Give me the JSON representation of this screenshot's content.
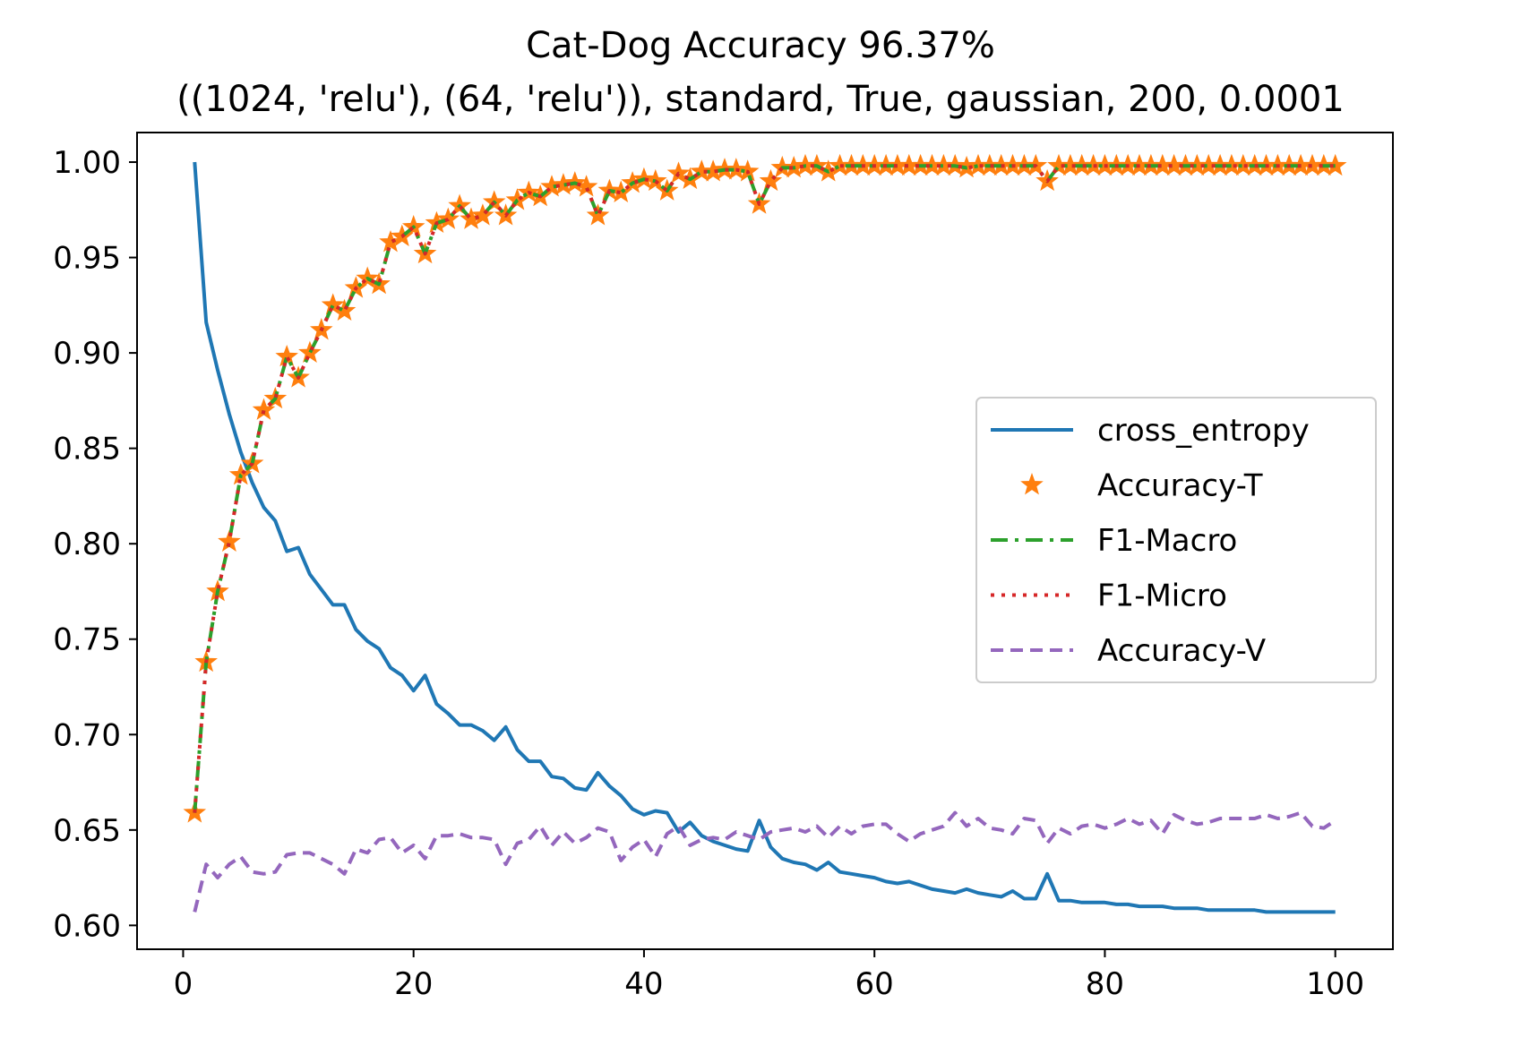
{
  "chart_data": {
    "type": "line",
    "title": "Cat-Dog Accuracy 96.37%",
    "subtitle": "((1024, 'relu'), (64, 'relu')), standard, True, gaussian, 200, 0.0001",
    "xlabel": "",
    "ylabel": "",
    "xlim": [
      -4,
      105
    ],
    "ylim": [
      0.5875,
      1.0155
    ],
    "xticks": [
      0,
      20,
      40,
      60,
      80,
      100
    ],
    "xtick_labels": [
      "0",
      "20",
      "40",
      "60",
      "80",
      "100"
    ],
    "yticks": [
      0.6,
      0.65,
      0.7,
      0.75,
      0.8,
      0.85,
      0.9,
      0.95,
      1.0
    ],
    "ytick_labels": [
      "0.60",
      "0.65",
      "0.70",
      "0.75",
      "0.80",
      "0.85",
      "0.90",
      "0.95",
      "1.00"
    ],
    "grid": false,
    "legend_position": "center-right",
    "x": [
      1,
      2,
      3,
      4,
      5,
      6,
      7,
      8,
      9,
      10,
      11,
      12,
      13,
      14,
      15,
      16,
      17,
      18,
      19,
      20,
      21,
      22,
      23,
      24,
      25,
      26,
      27,
      28,
      29,
      30,
      31,
      32,
      33,
      34,
      35,
      36,
      37,
      38,
      39,
      40,
      41,
      42,
      43,
      44,
      45,
      46,
      47,
      48,
      49,
      50,
      51,
      52,
      53,
      54,
      55,
      56,
      57,
      58,
      59,
      60,
      61,
      62,
      63,
      64,
      65,
      66,
      67,
      68,
      69,
      70,
      71,
      72,
      73,
      74,
      75,
      76,
      77,
      78,
      79,
      80,
      81,
      82,
      83,
      84,
      85,
      86,
      87,
      88,
      89,
      90,
      91,
      92,
      93,
      94,
      95,
      96,
      97,
      98,
      99,
      100
    ],
    "series": [
      {
        "name": "cross_entropy",
        "color": "#1f77b4",
        "style": "solid",
        "values": [
          1.0,
          0.916,
          0.891,
          0.868,
          0.848,
          0.832,
          0.819,
          0.812,
          0.796,
          0.798,
          0.784,
          0.776,
          0.768,
          0.768,
          0.755,
          0.749,
          0.745,
          0.735,
          0.731,
          0.723,
          0.731,
          0.716,
          0.711,
          0.705,
          0.705,
          0.702,
          0.697,
          0.704,
          0.692,
          0.686,
          0.686,
          0.678,
          0.677,
          0.672,
          0.671,
          0.68,
          0.673,
          0.668,
          0.661,
          0.658,
          0.66,
          0.659,
          0.649,
          0.654,
          0.647,
          0.644,
          0.642,
          0.64,
          0.639,
          0.655,
          0.641,
          0.635,
          0.633,
          0.632,
          0.629,
          0.633,
          0.628,
          0.627,
          0.626,
          0.625,
          0.623,
          0.622,
          0.623,
          0.621,
          0.619,
          0.618,
          0.617,
          0.619,
          0.617,
          0.616,
          0.615,
          0.618,
          0.614,
          0.614,
          0.627,
          0.613,
          0.613,
          0.612,
          0.612,
          0.612,
          0.611,
          0.611,
          0.61,
          0.61,
          0.61,
          0.609,
          0.609,
          0.609,
          0.608,
          0.608,
          0.608,
          0.608,
          0.608,
          0.607,
          0.607,
          0.607,
          0.607,
          0.607,
          0.607,
          0.607
        ]
      },
      {
        "name": "Accuracy-T",
        "color": "#ff7f0e",
        "style": "star",
        "values": [
          0.659,
          0.738,
          0.775,
          0.801,
          0.836,
          0.842,
          0.87,
          0.876,
          0.898,
          0.887,
          0.9,
          0.912,
          0.925,
          0.922,
          0.934,
          0.939,
          0.936,
          0.958,
          0.961,
          0.966,
          0.952,
          0.968,
          0.97,
          0.977,
          0.97,
          0.972,
          0.979,
          0.972,
          0.98,
          0.984,
          0.982,
          0.987,
          0.988,
          0.989,
          0.987,
          0.972,
          0.985,
          0.984,
          0.989,
          0.991,
          0.99,
          0.985,
          0.994,
          0.991,
          0.995,
          0.995,
          0.996,
          0.996,
          0.995,
          0.978,
          0.99,
          0.997,
          0.997,
          0.998,
          0.998,
          0.995,
          0.998,
          0.998,
          0.998,
          0.998,
          0.998,
          0.998,
          0.998,
          0.998,
          0.998,
          0.998,
          0.998,
          0.997,
          0.998,
          0.998,
          0.998,
          0.998,
          0.998,
          0.998,
          0.99,
          0.998,
          0.998,
          0.998,
          0.998,
          0.998,
          0.998,
          0.998,
          0.998,
          0.998,
          0.998,
          0.998,
          0.998,
          0.998,
          0.998,
          0.998,
          0.998,
          0.998,
          0.998,
          0.998,
          0.998,
          0.998,
          0.998,
          0.998,
          0.998,
          0.998
        ]
      },
      {
        "name": "F1-Macro",
        "color": "#2ca02c",
        "style": "dashdot",
        "values": [
          0.659,
          0.738,
          0.775,
          0.801,
          0.836,
          0.842,
          0.87,
          0.876,
          0.898,
          0.887,
          0.9,
          0.912,
          0.925,
          0.922,
          0.934,
          0.939,
          0.936,
          0.958,
          0.961,
          0.966,
          0.952,
          0.968,
          0.97,
          0.977,
          0.97,
          0.972,
          0.979,
          0.972,
          0.98,
          0.984,
          0.982,
          0.987,
          0.988,
          0.989,
          0.987,
          0.972,
          0.985,
          0.984,
          0.989,
          0.991,
          0.99,
          0.985,
          0.994,
          0.991,
          0.995,
          0.995,
          0.996,
          0.996,
          0.995,
          0.978,
          0.99,
          0.997,
          0.997,
          0.998,
          0.998,
          0.995,
          0.998,
          0.998,
          0.998,
          0.998,
          0.998,
          0.998,
          0.998,
          0.998,
          0.998,
          0.998,
          0.998,
          0.997,
          0.998,
          0.998,
          0.998,
          0.998,
          0.998,
          0.998,
          0.99,
          0.998,
          0.998,
          0.998,
          0.998,
          0.998,
          0.998,
          0.998,
          0.998,
          0.998,
          0.998,
          0.998,
          0.998,
          0.998,
          0.998,
          0.998,
          0.998,
          0.998,
          0.998,
          0.998,
          0.998,
          0.998,
          0.998,
          0.998,
          0.998,
          0.998
        ]
      },
      {
        "name": "F1-Micro",
        "color": "#d62728",
        "style": "dotted",
        "values": [
          0.659,
          0.738,
          0.775,
          0.801,
          0.836,
          0.842,
          0.87,
          0.876,
          0.898,
          0.887,
          0.9,
          0.912,
          0.925,
          0.922,
          0.934,
          0.939,
          0.936,
          0.958,
          0.961,
          0.966,
          0.952,
          0.968,
          0.97,
          0.977,
          0.97,
          0.972,
          0.979,
          0.972,
          0.98,
          0.984,
          0.982,
          0.987,
          0.988,
          0.989,
          0.987,
          0.972,
          0.985,
          0.984,
          0.989,
          0.991,
          0.99,
          0.985,
          0.994,
          0.991,
          0.995,
          0.995,
          0.996,
          0.996,
          0.995,
          0.978,
          0.99,
          0.997,
          0.997,
          0.998,
          0.998,
          0.995,
          0.998,
          0.998,
          0.998,
          0.998,
          0.998,
          0.998,
          0.998,
          0.998,
          0.998,
          0.998,
          0.998,
          0.997,
          0.998,
          0.998,
          0.998,
          0.998,
          0.998,
          0.998,
          0.99,
          0.998,
          0.998,
          0.998,
          0.998,
          0.998,
          0.998,
          0.998,
          0.998,
          0.998,
          0.998,
          0.998,
          0.998,
          0.998,
          0.998,
          0.998,
          0.998,
          0.998,
          0.998,
          0.998,
          0.998,
          0.998,
          0.998,
          0.998,
          0.998,
          0.998
        ]
      },
      {
        "name": "Accuracy-V",
        "color": "#9467bd",
        "style": "dashed",
        "values": [
          0.607,
          0.632,
          0.625,
          0.632,
          0.636,
          0.628,
          0.627,
          0.628,
          0.637,
          0.638,
          0.638,
          0.635,
          0.632,
          0.627,
          0.64,
          0.638,
          0.645,
          0.646,
          0.638,
          0.642,
          0.635,
          0.647,
          0.647,
          0.648,
          0.646,
          0.646,
          0.645,
          0.632,
          0.643,
          0.645,
          0.652,
          0.642,
          0.649,
          0.643,
          0.646,
          0.651,
          0.649,
          0.634,
          0.641,
          0.645,
          0.636,
          0.648,
          0.652,
          0.642,
          0.645,
          0.646,
          0.645,
          0.649,
          0.647,
          0.645,
          0.649,
          0.65,
          0.651,
          0.649,
          0.652,
          0.646,
          0.652,
          0.648,
          0.652,
          0.653,
          0.653,
          0.648,
          0.644,
          0.648,
          0.65,
          0.652,
          0.659,
          0.652,
          0.656,
          0.651,
          0.65,
          0.648,
          0.656,
          0.655,
          0.643,
          0.651,
          0.648,
          0.652,
          0.653,
          0.651,
          0.653,
          0.656,
          0.653,
          0.655,
          0.648,
          0.658,
          0.655,
          0.653,
          0.654,
          0.656,
          0.656,
          0.656,
          0.656,
          0.658,
          0.656,
          0.657,
          0.659,
          0.652,
          0.651,
          0.655
        ]
      }
    ]
  }
}
